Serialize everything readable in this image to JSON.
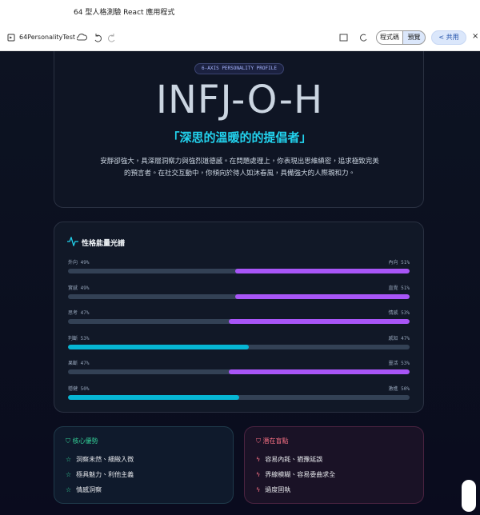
{
  "window": {
    "title": "64 型人格測驗 React 應用程式"
  },
  "toolbar": {
    "app_name": "64PersonalityTest",
    "code_button": "程式碼",
    "preview_button": "預覽",
    "share_button": "共用"
  },
  "profile": {
    "badge": "6-AXIS PERSONALITY PROFILE",
    "code": "INFJ-O-H",
    "nickname": "「深思的溫暖的的提倡者」",
    "description": "安靜卻強大，具深層洞察力與強烈道德感。在問題處理上，你表現出思維縝密，追求極致完美的預言者。在社交互動中，你傾向於待人如沐春風，具備強大的人際親和力。"
  },
  "spectrum": {
    "title": "性格能量光譜",
    "rows": [
      {
        "left": "外向",
        "left_value": 49,
        "left_value_label": "49%",
        "right": "內向",
        "right_value": 51,
        "right_value_label": "51%",
        "color": "#a855f7"
      },
      {
        "left": "實感",
        "left_value": 49,
        "left_value_label": "49%",
        "right": "直覺",
        "right_value": 51,
        "right_value_label": "51%",
        "color": "#a855f7"
      },
      {
        "left": "思考",
        "left_value": 47,
        "left_value_label": "47%",
        "right": "情感",
        "right_value": 53,
        "right_value_label": "53%",
        "color": "#a855f7"
      },
      {
        "left": "判斷",
        "left_value": 53,
        "left_value_label": "53%",
        "right": "感知",
        "right_value": 47,
        "right_value_label": "47%",
        "color": "#06b6d4"
      },
      {
        "left": "果斷",
        "left_value": 47,
        "left_value_label": "47%",
        "right": "靈活",
        "right_value": 53,
        "right_value_label": "53%",
        "color": "#a855f7"
      },
      {
        "left": "穩健",
        "left_value": 50,
        "left_value_label": "50%",
        "right": "激進",
        "right_value": 50,
        "right_value_label": "50%",
        "color": "#06b6d4"
      }
    ]
  },
  "strengths": {
    "title": "核心優勢",
    "items": [
      "洞察未然、細緻入微",
      "極具魅力、利他主義",
      "情感洞察"
    ]
  },
  "blindspots": {
    "title": "潛在盲點",
    "items": [
      "容易內耗、猶豫延誤",
      "界線模糊、容易委曲求全",
      "過度固執"
    ]
  }
}
